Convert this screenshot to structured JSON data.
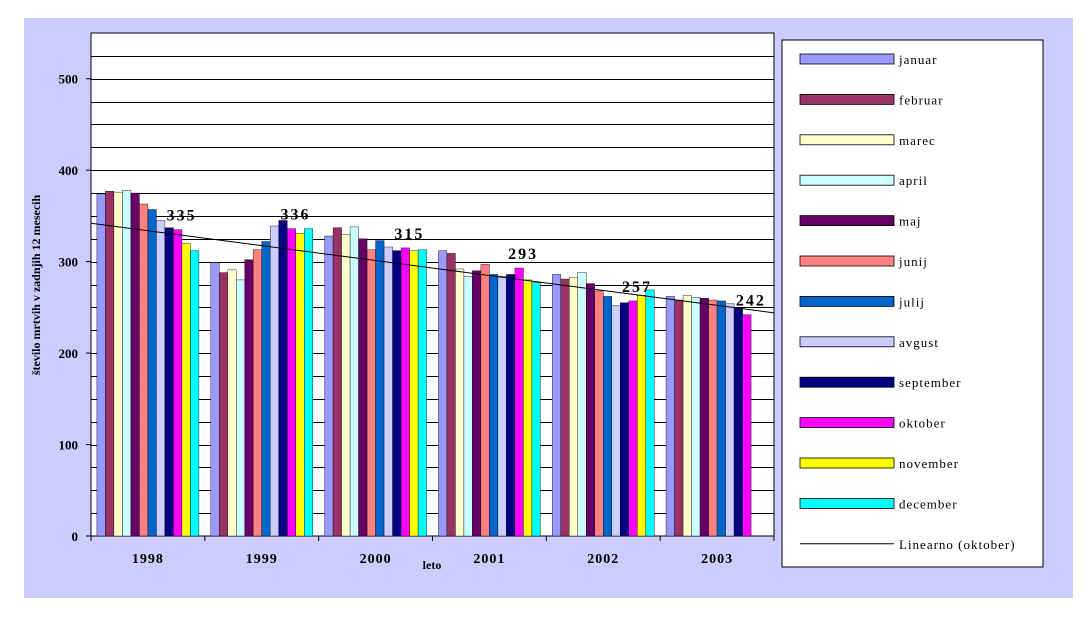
{
  "chart_data": {
    "type": "bar",
    "xlabel": "leto",
    "ylabel": "število mrtvih v zadnjih 12 mesecih",
    "ylim": [
      0,
      550
    ],
    "yticks": [
      0,
      100,
      200,
      300,
      400,
      500
    ],
    "grid": true,
    "legend_position": "right",
    "colors": {
      "outer_background": "#ccccff",
      "plot_background": "#ffffff",
      "trendline": "#000000"
    },
    "categories": [
      "1998",
      "1999",
      "2000",
      "2001",
      "2002",
      "2003"
    ],
    "series": [
      {
        "name": "januar",
        "color": "#9999ff",
        "values": [
          374,
          299,
          328,
          312,
          286,
          262
        ]
      },
      {
        "name": "februar",
        "color": "#993366",
        "values": [
          377,
          288,
          337,
          309,
          281,
          258
        ]
      },
      {
        "name": "marec",
        "color": "#ffffcc",
        "values": [
          376,
          291,
          330,
          292,
          283,
          263
        ]
      },
      {
        "name": "april",
        "color": "#ccffff",
        "values": [
          378,
          280,
          338,
          284,
          288,
          261
        ]
      },
      {
        "name": "maj",
        "color": "#660066",
        "values": [
          375,
          302,
          325,
          290,
          276,
          260
        ]
      },
      {
        "name": "junij",
        "color": "#ff8080",
        "values": [
          363,
          313,
          313,
          297,
          268,
          258
        ]
      },
      {
        "name": "julij",
        "color": "#0066cc",
        "values": [
          357,
          322,
          323,
          286,
          262,
          257
        ]
      },
      {
        "name": "avgust",
        "color": "#ccccff",
        "values": [
          345,
          339,
          316,
          284,
          252,
          254
        ]
      },
      {
        "name": "september",
        "color": "#000080",
        "values": [
          337,
          345,
          312,
          286,
          255,
          250
        ]
      },
      {
        "name": "oktober",
        "color": "#ff00ff",
        "values": [
          335,
          336,
          315,
          293,
          257,
          242
        ]
      },
      {
        "name": "november",
        "color": "#ffff00",
        "values": [
          320,
          331,
          312,
          280,
          263,
          null
        ]
      },
      {
        "name": "december",
        "color": "#00ffff",
        "values": [
          312,
          336,
          313,
          277,
          269,
          null
        ]
      }
    ],
    "annotations": [
      {
        "category": "1998",
        "text": "335"
      },
      {
        "category": "1999",
        "text": "336"
      },
      {
        "category": "2000",
        "text": "315"
      },
      {
        "category": "2001",
        "text": "293"
      },
      {
        "category": "2002",
        "text": "257"
      },
      {
        "category": "2003",
        "text": "242"
      }
    ],
    "trendline": {
      "name": "Linearno (oktober)",
      "start_value": 342,
      "end_value": 244
    }
  }
}
